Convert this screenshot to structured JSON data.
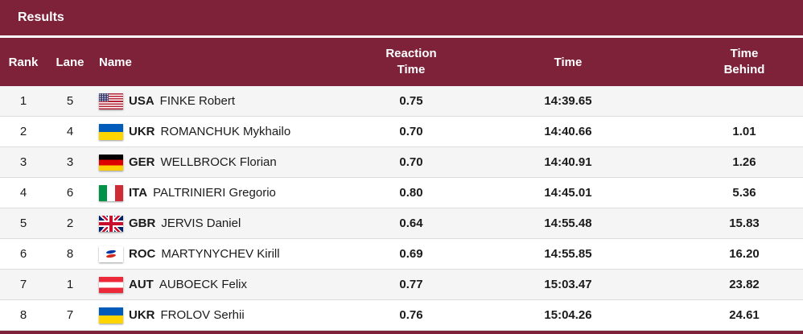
{
  "title": "Results",
  "colors": {
    "maroon": "#7d2239",
    "row_alt": "#f5f5f5",
    "row_border": "#dddddd",
    "text": "#1b1b1b"
  },
  "header": {
    "rank": "Rank",
    "lane": "Lane",
    "name": "Name",
    "reaction_line1": "Reaction",
    "reaction_line2": "Time",
    "time": "Time",
    "behind_line1": "Time",
    "behind_line2": "Behind"
  },
  "rows": [
    {
      "rank": "1",
      "lane": "5",
      "flag": "usa",
      "noc": "USA",
      "athlete": "FINKE Robert",
      "reaction": "0.75",
      "time": "14:39.65",
      "behind": ""
    },
    {
      "rank": "2",
      "lane": "4",
      "flag": "ukr",
      "noc": "UKR",
      "athlete": "ROMANCHUK Mykhailo",
      "reaction": "0.70",
      "time": "14:40.66",
      "behind": "1.01"
    },
    {
      "rank": "3",
      "lane": "3",
      "flag": "ger",
      "noc": "GER",
      "athlete": "WELLBROCK Florian",
      "reaction": "0.70",
      "time": "14:40.91",
      "behind": "1.26"
    },
    {
      "rank": "4",
      "lane": "6",
      "flag": "ita",
      "noc": "ITA",
      "athlete": "PALTRINIERI Gregorio",
      "reaction": "0.80",
      "time": "14:45.01",
      "behind": "5.36"
    },
    {
      "rank": "5",
      "lane": "2",
      "flag": "gbr",
      "noc": "GBR",
      "athlete": "JERVIS Daniel",
      "reaction": "0.64",
      "time": "14:55.48",
      "behind": "15.83"
    },
    {
      "rank": "6",
      "lane": "8",
      "flag": "roc",
      "noc": "ROC",
      "athlete": "MARTYNYCHEV Kirill",
      "reaction": "0.69",
      "time": "14:55.85",
      "behind": "16.20"
    },
    {
      "rank": "7",
      "lane": "1",
      "flag": "aut",
      "noc": "AUT",
      "athlete": "AUBOECK Felix",
      "reaction": "0.77",
      "time": "15:03.47",
      "behind": "23.82"
    },
    {
      "rank": "8",
      "lane": "7",
      "flag": "ukr",
      "noc": "UKR",
      "athlete": "FROLOV Serhii",
      "reaction": "0.76",
      "time": "15:04.26",
      "behind": "24.61"
    }
  ]
}
